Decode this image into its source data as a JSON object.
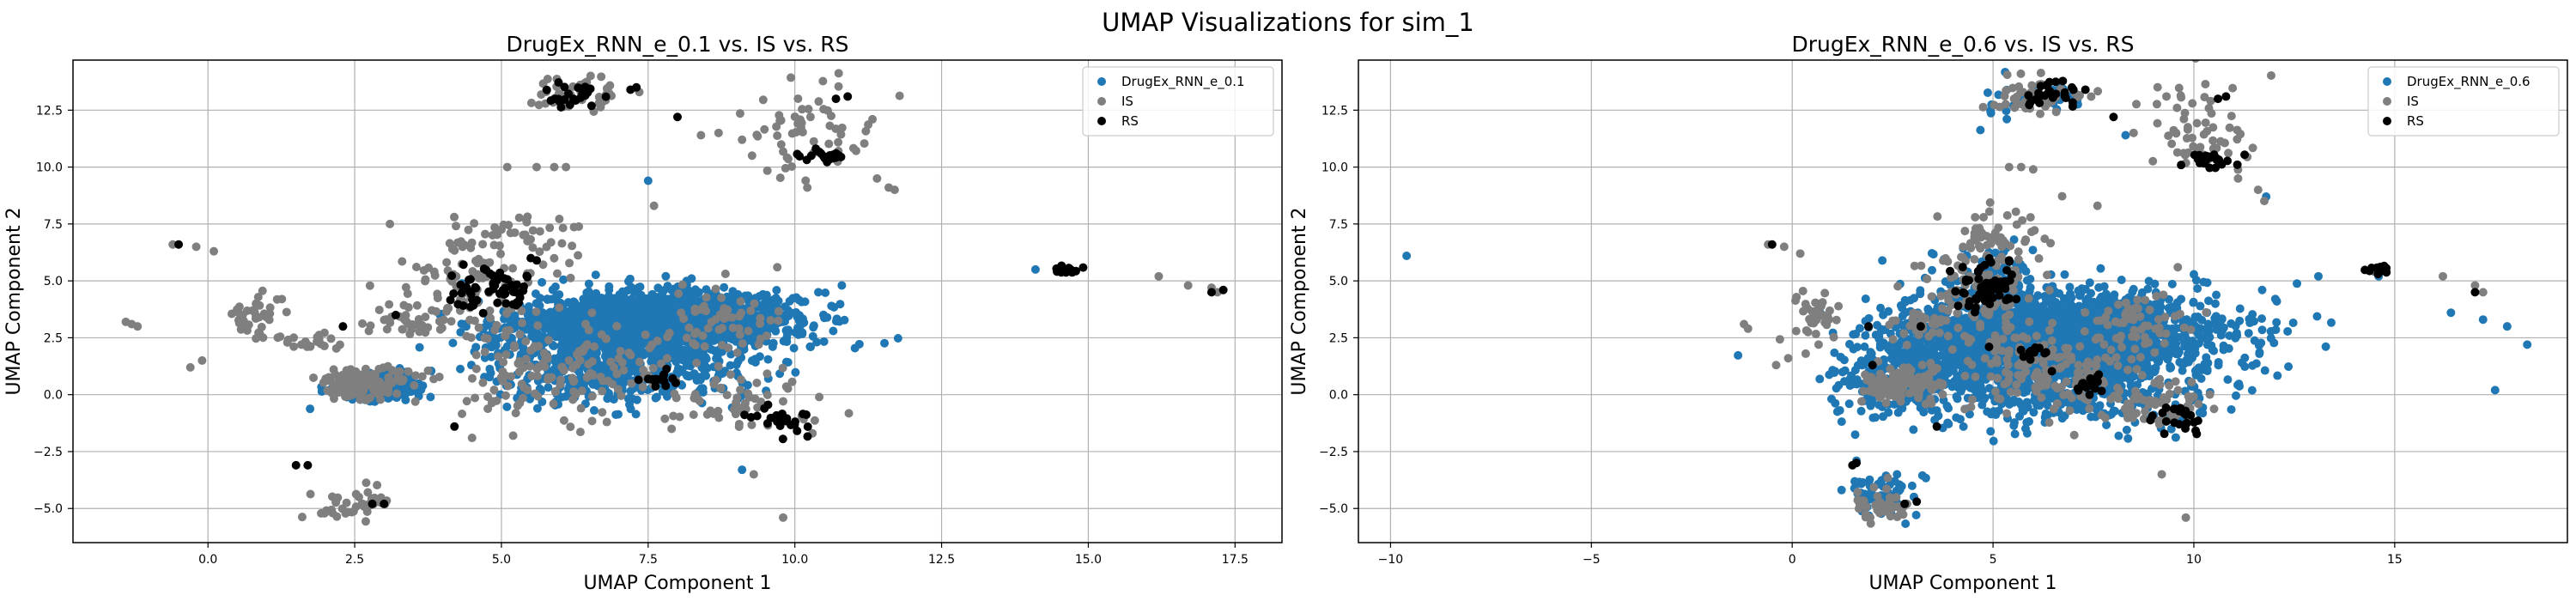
{
  "figure": {
    "suptitle": "UMAP Visualizations for sim_1"
  },
  "colors": {
    "generated": "#1f77b4",
    "IS": "#7f7f7f",
    "RS": "#000000",
    "grid": "#b0b0b0",
    "axes": "#000000"
  },
  "chart_data": [
    {
      "type": "scatter",
      "title": "DrugEx_RNN_e_0.1 vs. IS vs. RS",
      "xlabel": "UMAP Component 1",
      "ylabel": "UMAP Component 2",
      "xlim": [
        -2.3,
        18.3
      ],
      "ylim": [
        -6.5,
        14.7
      ],
      "xticks": [
        0.0,
        2.5,
        5.0,
        7.5,
        10.0,
        12.5,
        15.0,
        17.5
      ],
      "yticks": [
        -5.0,
        -2.5,
        0.0,
        2.5,
        5.0,
        7.5,
        10.0,
        12.5
      ],
      "grid": true,
      "legend_position": "top-right",
      "series": [
        {
          "name": "DrugEx_RNN_e_0.1",
          "color": "#1f77b4",
          "clusters": [
            {
              "cx": 7.8,
              "cy": 3.3,
              "sx": 1.1,
              "sy": 0.6,
              "n": 1800
            },
            {
              "cx": 6.9,
              "cy": 2.0,
              "sx": 0.9,
              "sy": 0.8,
              "n": 400
            },
            {
              "cx": 3.0,
              "cy": 0.3,
              "sx": 0.4,
              "sy": 0.3,
              "n": 220
            },
            {
              "cx": 6.5,
              "cy": 0.5,
              "sx": 0.8,
              "sy": 0.6,
              "n": 150
            },
            {
              "cx": 5.3,
              "cy": 2.2,
              "sx": 0.7,
              "sy": 0.9,
              "n": 80
            },
            {
              "cx": 8.5,
              "cy": 1.0,
              "sx": 0.6,
              "sy": 0.7,
              "n": 80
            }
          ],
          "points": [
            [
              10.8,
              4.8
            ],
            [
              10.4,
              4.5
            ],
            [
              7.5,
              9.4
            ],
            [
              9.1,
              -3.3
            ],
            [
              4.4,
              3.0
            ],
            [
              14.1,
              5.5
            ]
          ]
        },
        {
          "name": "IS",
          "color": "#7f7f7f",
          "clusters": [
            {
              "cx": 2.7,
              "cy": 0.5,
              "sx": 0.45,
              "sy": 0.35,
              "n": 120
            },
            {
              "cx": 0.8,
              "cy": 3.4,
              "sx": 0.2,
              "sy": 0.4,
              "n": 40
            },
            {
              "cx": 4.5,
              "cy": 4.5,
              "sx": 0.7,
              "sy": 1.2,
              "n": 120
            },
            {
              "cx": 6.2,
              "cy": 13.1,
              "sx": 0.5,
              "sy": 0.4,
              "n": 45
            },
            {
              "cx": 10.3,
              "cy": 11.5,
              "sx": 0.6,
              "sy": 1.2,
              "n": 60
            },
            {
              "cx": 6.0,
              "cy": 1.0,
              "sx": 1.0,
              "sy": 1.0,
              "n": 140
            },
            {
              "cx": 9.2,
              "cy": -0.4,
              "sx": 0.7,
              "sy": 0.5,
              "n": 60
            },
            {
              "cx": 2.5,
              "cy": -4.8,
              "sx": 0.35,
              "sy": 0.4,
              "n": 40
            },
            {
              "cx": 8.7,
              "cy": 3.0,
              "sx": 0.5,
              "sy": 0.8,
              "n": 60
            },
            {
              "cx": 1.8,
              "cy": 2.3,
              "sx": 0.3,
              "sy": 0.2,
              "n": 20
            },
            {
              "cx": 5.3,
              "cy": 7.0,
              "sx": 0.7,
              "sy": 0.5,
              "n": 40
            },
            {
              "cx": 3.3,
              "cy": 3.2,
              "sx": 0.3,
              "sy": 0.3,
              "n": 25
            }
          ],
          "points": [
            [
              -1.3,
              3.1
            ],
            [
              -1.2,
              3.0
            ],
            [
              -1.4,
              3.2
            ],
            [
              -0.6,
              6.6
            ],
            [
              -0.2,
              6.5
            ],
            [
              0.1,
              6.3
            ],
            [
              -0.3,
              1.2
            ],
            [
              -0.1,
              1.5
            ],
            [
              5.6,
              10.0
            ],
            [
              5.9,
              10.0
            ],
            [
              6.1,
              10.0
            ],
            [
              5.1,
              10.0
            ],
            [
              8.4,
              11.4
            ],
            [
              8.7,
              11.5
            ],
            [
              9.1,
              11.2
            ],
            [
              11.4,
              9.5
            ],
            [
              11.6,
              9.1
            ],
            [
              11.7,
              9.0
            ],
            [
              16.2,
              5.2
            ],
            [
              16.7,
              4.8
            ],
            [
              17.1,
              4.7
            ],
            [
              17.2,
              4.5
            ],
            [
              14.7,
              5.5
            ],
            [
              4.5,
              -1.9
            ],
            [
              5.2,
              -1.8
            ],
            [
              9.8,
              -5.4
            ],
            [
              9.3,
              -3.5
            ],
            [
              9.7,
              5.6
            ],
            [
              7.6,
              8.3
            ],
            [
              3.1,
              7.5
            ],
            [
              10.3,
              -1.7
            ],
            [
              7.9,
              -1.5
            ]
          ]
        },
        {
          "name": "RS",
          "color": "#000000",
          "clusters": [
            {
              "cx": 4.8,
              "cy": 4.6,
              "sx": 0.35,
              "sy": 0.5,
              "n": 60
            },
            {
              "cx": 6.3,
              "cy": 13.1,
              "sx": 0.35,
              "sy": 0.3,
              "n": 25
            },
            {
              "cx": 10.5,
              "cy": 10.4,
              "sx": 0.25,
              "sy": 0.2,
              "n": 20
            },
            {
              "cx": 9.8,
              "cy": -1.1,
              "sx": 0.3,
              "sy": 0.35,
              "n": 25
            },
            {
              "cx": 7.8,
              "cy": 0.6,
              "sx": 0.15,
              "sy": 0.2,
              "n": 15
            },
            {
              "cx": 14.6,
              "cy": 5.5,
              "sx": 0.15,
              "sy": 0.1,
              "n": 18
            }
          ],
          "points": [
            [
              -0.5,
              6.6
            ],
            [
              1.5,
              -3.1
            ],
            [
              1.7,
              -3.1
            ],
            [
              2.8,
              -4.8
            ],
            [
              3.0,
              -4.8
            ],
            [
              4.2,
              -1.4
            ],
            [
              5.5,
              6.0
            ],
            [
              5.6,
              5.9
            ],
            [
              7.2,
              13.4
            ],
            [
              7.3,
              13.5
            ],
            [
              8.0,
              12.2
            ],
            [
              10.7,
              13.0
            ],
            [
              10.9,
              13.1
            ],
            [
              17.3,
              4.6
            ],
            [
              17.1,
              4.5
            ],
            [
              3.2,
              3.5
            ],
            [
              2.3,
              3.0
            ],
            [
              10.7,
              10.6
            ]
          ]
        }
      ]
    },
    {
      "type": "scatter",
      "title": "DrugEx_RNN_e_0.6 vs. IS vs. RS",
      "xlabel": "UMAP Component 1",
      "ylabel": "UMAP Component 2",
      "xlim": [
        -10.8,
        19.3
      ],
      "ylim": [
        -6.5,
        14.7
      ],
      "xticks": [
        -10,
        -5,
        0,
        5,
        10,
        15
      ],
      "yticks": [
        -5.0,
        -2.5,
        0.0,
        2.5,
        5.0,
        7.5,
        10.0,
        12.5
      ],
      "grid": true,
      "legend_position": "top-right",
      "series": [
        {
          "name": "DrugEx_RNN_e_0.6",
          "color": "#1f77b4",
          "clusters": [
            {
              "cx": 6.6,
              "cy": 2.6,
              "sx": 1.8,
              "sy": 0.9,
              "n": 2000
            },
            {
              "cx": 4.6,
              "cy": 1.2,
              "sx": 1.5,
              "sy": 1.2,
              "n": 500
            },
            {
              "cx": 7.5,
              "cy": 0.5,
              "sx": 1.5,
              "sy": 1.1,
              "n": 300
            },
            {
              "cx": 2.5,
              "cy": 0.5,
              "sx": 0.8,
              "sy": 0.8,
              "n": 150
            },
            {
              "cx": 5.0,
              "cy": 4.8,
              "sx": 0.8,
              "sy": 0.8,
              "n": 120
            },
            {
              "cx": 2.2,
              "cy": -4.4,
              "sx": 0.4,
              "sy": 0.5,
              "n": 60
            },
            {
              "cx": 10.5,
              "cy": 2.5,
              "sx": 1.0,
              "sy": 1.0,
              "n": 60
            },
            {
              "cx": 6.0,
              "cy": 12.8,
              "sx": 0.8,
              "sy": 0.5,
              "n": 30
            }
          ],
          "points": [
            [
              -9.6,
              6.1
            ],
            [
              14.6,
              5.2
            ],
            [
              17.2,
              3.3
            ],
            [
              17.8,
              3.0
            ],
            [
              18.3,
              2.2
            ],
            [
              17.5,
              0.2
            ],
            [
              16.4,
              3.6
            ],
            [
              11.8,
              8.7
            ],
            [
              13.1,
              5.2
            ],
            [
              8.3,
              11.4
            ],
            [
              11.7,
              4.6
            ],
            [
              1.6,
              -2.9
            ],
            [
              7.9,
              -0.9
            ]
          ]
        },
        {
          "name": "IS",
          "color": "#7f7f7f",
          "clusters": [
            {
              "cx": 2.7,
              "cy": 0.5,
              "sx": 0.5,
              "sy": 0.4,
              "n": 120
            },
            {
              "cx": 0.6,
              "cy": 3.5,
              "sx": 0.3,
              "sy": 0.5,
              "n": 40
            },
            {
              "cx": 4.6,
              "cy": 4.5,
              "sx": 0.8,
              "sy": 1.3,
              "n": 120
            },
            {
              "cx": 5.9,
              "cy": 13.1,
              "sx": 0.6,
              "sy": 0.4,
              "n": 45
            },
            {
              "cx": 10.1,
              "cy": 11.5,
              "sx": 0.7,
              "sy": 1.2,
              "n": 60
            },
            {
              "cx": 6.0,
              "cy": 1.0,
              "sx": 1.2,
              "sy": 1.0,
              "n": 150
            },
            {
              "cx": 9.0,
              "cy": -0.4,
              "sx": 0.8,
              "sy": 0.5,
              "n": 60
            },
            {
              "cx": 2.2,
              "cy": -4.9,
              "sx": 0.4,
              "sy": 0.4,
              "n": 40
            },
            {
              "cx": 8.7,
              "cy": 3.0,
              "sx": 0.6,
              "sy": 0.8,
              "n": 60
            },
            {
              "cx": 5.1,
              "cy": 7.0,
              "sx": 0.6,
              "sy": 0.5,
              "n": 40
            },
            {
              "cx": 3.0,
              "cy": 3.1,
              "sx": 0.4,
              "sy": 0.3,
              "n": 25
            }
          ],
          "points": [
            [
              -1.2,
              3.1
            ],
            [
              -1.1,
              2.9
            ],
            [
              -0.6,
              6.6
            ],
            [
              -0.2,
              6.5
            ],
            [
              0.2,
              6.2
            ],
            [
              -0.4,
              1.3
            ],
            [
              -0.1,
              1.6
            ],
            [
              5.4,
              10.0
            ],
            [
              5.7,
              10.0
            ],
            [
              6.0,
              9.9
            ],
            [
              8.5,
              11.5
            ],
            [
              11.1,
              9.5
            ],
            [
              11.6,
              9.0
            ],
            [
              16.2,
              5.2
            ],
            [
              17.0,
              4.8
            ],
            [
              17.2,
              4.5
            ],
            [
              14.5,
              5.4
            ],
            [
              9.8,
              -5.4
            ],
            [
              9.2,
              -3.5
            ],
            [
              9.6,
              5.6
            ],
            [
              7.6,
              8.3
            ]
          ]
        },
        {
          "name": "RS",
          "color": "#000000",
          "clusters": [
            {
              "cx": 4.9,
              "cy": 4.6,
              "sx": 0.4,
              "sy": 0.6,
              "n": 60
            },
            {
              "cx": 6.5,
              "cy": 13.1,
              "sx": 0.4,
              "sy": 0.3,
              "n": 25
            },
            {
              "cx": 10.4,
              "cy": 10.3,
              "sx": 0.3,
              "sy": 0.2,
              "n": 20
            },
            {
              "cx": 9.6,
              "cy": -1.0,
              "sx": 0.35,
              "sy": 0.35,
              "n": 25
            },
            {
              "cx": 7.4,
              "cy": 0.5,
              "sx": 0.2,
              "sy": 0.25,
              "n": 15
            },
            {
              "cx": 14.6,
              "cy": 5.5,
              "sx": 0.15,
              "sy": 0.1,
              "n": 18
            },
            {
              "cx": 6.0,
              "cy": 1.8,
              "sx": 0.3,
              "sy": 0.3,
              "n": 12
            }
          ],
          "points": [
            [
              -0.5,
              6.6
            ],
            [
              1.5,
              -3.1
            ],
            [
              1.6,
              -3.0
            ],
            [
              2.8,
              -4.8
            ],
            [
              3.1,
              -4.7
            ],
            [
              3.6,
              -1.4
            ],
            [
              5.4,
              5.9
            ],
            [
              7.0,
              13.4
            ],
            [
              7.3,
              13.4
            ],
            [
              8.0,
              12.2
            ],
            [
              10.6,
              13.0
            ],
            [
              10.8,
              13.1
            ],
            [
              17.0,
              4.5
            ],
            [
              3.2,
              3.0
            ],
            [
              1.9,
              3.0
            ],
            [
              4.9,
              2.1
            ],
            [
              2.0,
              1.3
            ]
          ]
        }
      ]
    }
  ]
}
